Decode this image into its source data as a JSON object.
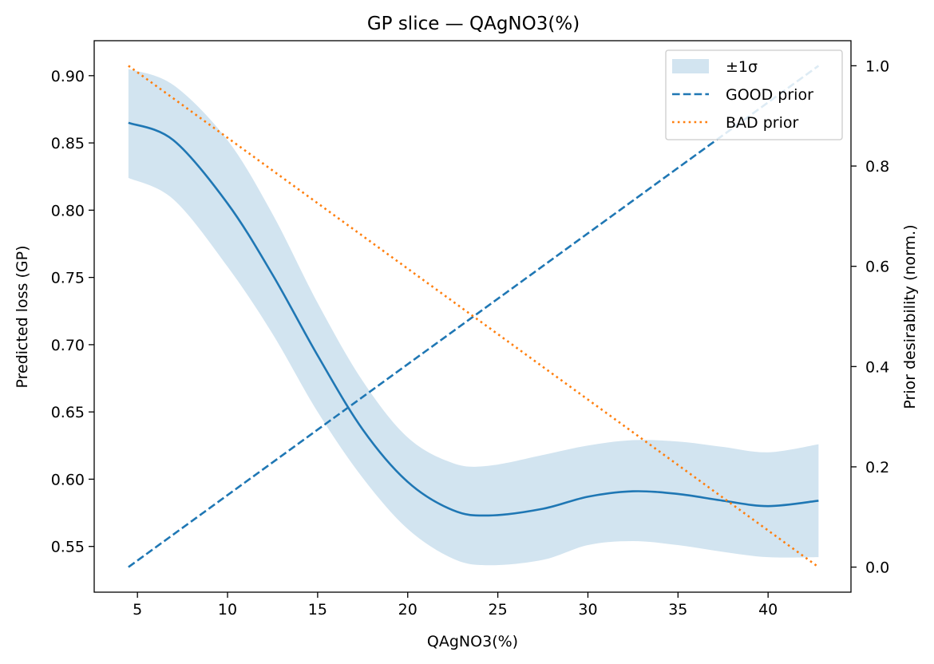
{
  "chart_data": {
    "type": "line",
    "title": "GP slice — QAgNO3(%)",
    "xlabel": "QAgNO3(%)",
    "ylabel": "Predicted loss (GP)",
    "y2label": "Prior desirability (norm.)",
    "xlim": [
      2.6,
      44.6
    ],
    "ylim": [
      0.516,
      0.926
    ],
    "y2lim": [
      -0.05,
      1.05
    ],
    "xticks": [
      5,
      10,
      15,
      20,
      25,
      30,
      35,
      40
    ],
    "yticks": [
      0.55,
      0.6,
      0.65,
      0.7,
      0.75,
      0.8,
      0.85,
      0.9
    ],
    "y2ticks": [
      0.0,
      0.2,
      0.4,
      0.6,
      0.8,
      1.0
    ],
    "legend_position": "top-right",
    "grid": false,
    "series": [
      {
        "name": "±1σ",
        "kind": "band",
        "axis": "left",
        "color": "#1f77b4",
        "opacity": 0.2,
        "x": [
          4.5,
          7,
          10,
          12.5,
          15,
          17.5,
          20,
          22.5,
          24.5,
          27.5,
          30,
          32.5,
          35,
          37.5,
          40,
          42.8
        ],
        "lower": [
          0.824,
          0.808,
          0.758,
          0.708,
          0.65,
          0.601,
          0.563,
          0.541,
          0.536,
          0.54,
          0.551,
          0.554,
          0.551,
          0.546,
          0.542,
          0.542
        ],
        "upper": [
          0.905,
          0.893,
          0.852,
          0.797,
          0.731,
          0.673,
          0.631,
          0.612,
          0.61,
          0.618,
          0.625,
          0.629,
          0.628,
          0.624,
          0.62,
          0.626
        ]
      },
      {
        "name": "",
        "kind": "line",
        "axis": "left",
        "color": "#1f77b4",
        "style": "solid",
        "x": [
          4.5,
          7,
          10,
          12.5,
          15,
          17.5,
          20,
          22.5,
          24.5,
          27.5,
          30,
          32.5,
          35,
          37.5,
          40,
          42.8
        ],
        "values": [
          0.865,
          0.852,
          0.805,
          0.752,
          0.692,
          0.637,
          0.598,
          0.577,
          0.573,
          0.578,
          0.587,
          0.591,
          0.589,
          0.584,
          0.58,
          0.584
        ]
      },
      {
        "name": "GOOD prior",
        "kind": "line",
        "axis": "right",
        "color": "#1f77b4",
        "style": "dashed",
        "x": [
          4.5,
          42.8
        ],
        "values": [
          0.0,
          1.0
        ]
      },
      {
        "name": "BAD prior",
        "kind": "line",
        "axis": "right",
        "color": "#ff7f0e",
        "style": "dotted",
        "x": [
          4.5,
          42.8
        ],
        "values": [
          1.0,
          0.0
        ]
      }
    ]
  }
}
